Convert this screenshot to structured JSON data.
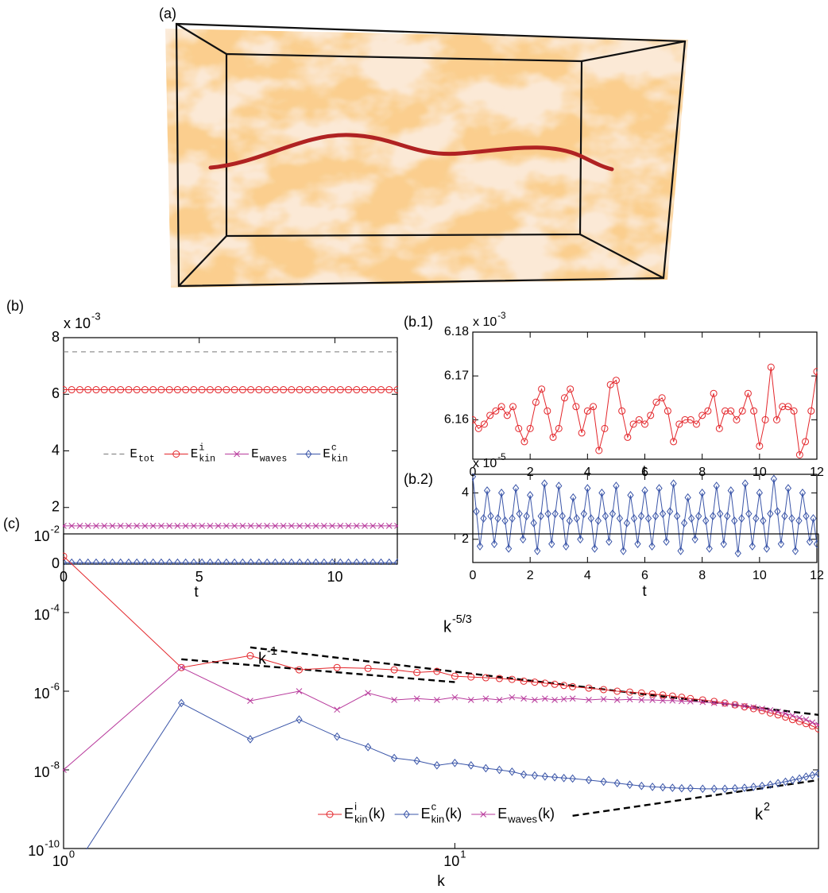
{
  "panel_a": {
    "label": "(a)"
  },
  "chart_data": [
    {
      "type": "line",
      "label": "(b)",
      "xlabel": "t",
      "multiplier": {
        "text": "x 10",
        "exp": "-3"
      },
      "xlim": [
        0,
        12.3
      ],
      "xticks": [
        0,
        5,
        10
      ],
      "ylim": [
        0,
        8
      ],
      "yticks": [
        0,
        2,
        4,
        6,
        8
      ],
      "legend": "center",
      "x": [
        0,
        0.3,
        0.6,
        0.9,
        1.2,
        1.5,
        1.8,
        2.1,
        2.4,
        2.7,
        3,
        3.3,
        3.6,
        3.9,
        4.2,
        4.5,
        4.8,
        5.1,
        5.4,
        5.7,
        6,
        6.3,
        6.6,
        6.9,
        7.2,
        7.5,
        7.8,
        8.1,
        8.4,
        8.7,
        9,
        9.3,
        9.6,
        9.9,
        10.2,
        10.5,
        10.8,
        11.1,
        11.4,
        11.7,
        12,
        12.3
      ],
      "series": [
        {
          "name": "E",
          "sub": "tot",
          "color": "#777777",
          "dash": true,
          "values": [
            7.5,
            7.5,
            7.5,
            7.5,
            7.5,
            7.5,
            7.5,
            7.5,
            7.5,
            7.5,
            7.5,
            7.5,
            7.5,
            7.5,
            7.5,
            7.5,
            7.5,
            7.5,
            7.5,
            7.5,
            7.5,
            7.5,
            7.5,
            7.5,
            7.5,
            7.5,
            7.5,
            7.5,
            7.5,
            7.5,
            7.5,
            7.5,
            7.5,
            7.5,
            7.5,
            7.5,
            7.5,
            7.5,
            7.5,
            7.5,
            7.5,
            7.5
          ]
        },
        {
          "name": "E",
          "sup": "i",
          "sub": "kin",
          "color": "#e3262b",
          "marker": "circle",
          "values": [
            6.16,
            6.16,
            6.16,
            6.16,
            6.16,
            6.16,
            6.16,
            6.16,
            6.16,
            6.16,
            6.16,
            6.16,
            6.16,
            6.16,
            6.16,
            6.16,
            6.16,
            6.16,
            6.16,
            6.16,
            6.16,
            6.16,
            6.16,
            6.16,
            6.16,
            6.16,
            6.16,
            6.16,
            6.16,
            6.16,
            6.16,
            6.16,
            6.16,
            6.16,
            6.16,
            6.16,
            6.16,
            6.16,
            6.16,
            6.16,
            6.16,
            6.16
          ]
        },
        {
          "name": "E",
          "sub": "waves",
          "color": "#b83a9c",
          "marker": "x",
          "values": [
            1.35,
            1.35,
            1.35,
            1.35,
            1.35,
            1.35,
            1.35,
            1.35,
            1.35,
            1.35,
            1.35,
            1.35,
            1.35,
            1.35,
            1.35,
            1.35,
            1.35,
            1.35,
            1.35,
            1.35,
            1.35,
            1.35,
            1.35,
            1.35,
            1.35,
            1.35,
            1.35,
            1.35,
            1.35,
            1.35,
            1.35,
            1.35,
            1.35,
            1.35,
            1.35,
            1.35,
            1.35,
            1.35,
            1.35,
            1.35,
            1.35,
            1.35
          ]
        },
        {
          "name": "E",
          "sup": "c",
          "sub": "kin",
          "color": "#3a55a8",
          "marker": "diamond",
          "values": [
            0.05,
            0.05,
            0.05,
            0.05,
            0.05,
            0.05,
            0.05,
            0.05,
            0.05,
            0.05,
            0.05,
            0.05,
            0.05,
            0.05,
            0.05,
            0.05,
            0.05,
            0.05,
            0.05,
            0.05,
            0.05,
            0.05,
            0.05,
            0.05,
            0.05,
            0.05,
            0.05,
            0.05,
            0.05,
            0.05,
            0.05,
            0.05,
            0.05,
            0.05,
            0.05,
            0.05,
            0.05,
            0.05,
            0.05,
            0.05,
            0.05,
            0.05
          ]
        }
      ]
    },
    {
      "type": "line",
      "label": "(b.1)",
      "xlabel": "t",
      "multiplier": {
        "text": "x 10",
        "exp": "-3"
      },
      "xlim": [
        0,
        12
      ],
      "xticks": [
        0,
        2,
        4,
        6,
        8,
        10,
        12
      ],
      "ylim": [
        6.151,
        6.18
      ],
      "yticks": [
        6.16,
        6.17,
        6.18
      ],
      "x": [
        0,
        0.2,
        0.4,
        0.6,
        0.8,
        1,
        1.2,
        1.4,
        1.6,
        1.8,
        2,
        2.2,
        2.4,
        2.6,
        2.8,
        3,
        3.2,
        3.4,
        3.6,
        3.8,
        4,
        4.2,
        4.4,
        4.6,
        4.8,
        5,
        5.2,
        5.4,
        5.6,
        5.8,
        6,
        6.2,
        6.4,
        6.6,
        6.8,
        7,
        7.2,
        7.4,
        7.6,
        7.8,
        8,
        8.2,
        8.4,
        8.6,
        8.8,
        9,
        9.2,
        9.4,
        9.6,
        9.8,
        10,
        10.2,
        10.4,
        10.6,
        10.8,
        11,
        11.2,
        11.4,
        11.6,
        11.8,
        12
      ],
      "series": [
        {
          "color": "#e3262b",
          "marker": "circle",
          "values": [
            6.16,
            6.158,
            6.159,
            6.161,
            6.162,
            6.163,
            6.161,
            6.163,
            6.158,
            6.155,
            6.158,
            6.164,
            6.167,
            6.162,
            6.156,
            6.158,
            6.165,
            6.167,
            6.163,
            6.157,
            6.162,
            6.163,
            6.153,
            6.158,
            6.168,
            6.169,
            6.162,
            6.156,
            6.159,
            6.16,
            6.159,
            6.161,
            6.164,
            6.165,
            6.162,
            6.155,
            6.159,
            6.16,
            6.16,
            6.159,
            6.161,
            6.162,
            6.166,
            6.158,
            6.162,
            6.162,
            6.16,
            6.162,
            6.166,
            6.162,
            6.154,
            6.16,
            6.172,
            6.16,
            6.163,
            6.163,
            6.162,
            6.152,
            6.155,
            6.162,
            6.171
          ]
        }
      ]
    },
    {
      "type": "line",
      "label": "(b.2)",
      "xlabel": "t",
      "multiplier": {
        "text": "x 10",
        "exp": "-5"
      },
      "xlim": [
        0,
        12
      ],
      "xticks": [
        0,
        2,
        4,
        6,
        8,
        10,
        12
      ],
      "ylim": [
        1,
        4.8
      ],
      "yticks": [
        2,
        4
      ],
      "x": [
        0,
        0.125,
        0.25,
        0.375,
        0.5,
        0.625,
        0.75,
        0.875,
        1,
        1.125,
        1.25,
        1.375,
        1.5,
        1.625,
        1.75,
        1.875,
        2,
        2.125,
        2.25,
        2.375,
        2.5,
        2.625,
        2.75,
        2.875,
        3,
        3.125,
        3.25,
        3.375,
        3.5,
        3.625,
        3.75,
        3.875,
        4,
        4.125,
        4.25,
        4.375,
        4.5,
        4.625,
        4.75,
        4.875,
        5,
        5.125,
        5.25,
        5.375,
        5.5,
        5.625,
        5.75,
        5.875,
        6,
        6.125,
        6.25,
        6.375,
        6.5,
        6.625,
        6.75,
        6.875,
        7,
        7.125,
        7.25,
        7.375,
        7.5,
        7.625,
        7.75,
        7.875,
        8,
        8.125,
        8.25,
        8.375,
        8.5,
        8.625,
        8.75,
        8.875,
        9,
        9.125,
        9.25,
        9.375,
        9.5,
        9.625,
        9.75,
        9.875,
        10,
        10.125,
        10.25,
        10.375,
        10.5,
        10.625,
        10.75,
        10.875,
        11,
        11.125,
        11.25,
        11.375,
        11.5,
        11.625,
        11.75,
        11.875,
        12
      ],
      "series": [
        {
          "color": "#3a55a8",
          "marker": "diamond",
          "values": [
            4.7,
            3.2,
            1.7,
            2.9,
            4.1,
            3.0,
            1.8,
            2.9,
            4.0,
            2.8,
            1.6,
            2.9,
            4.2,
            3.1,
            2.0,
            3.0,
            3.9,
            2.7,
            1.5,
            3.0,
            4.4,
            3.1,
            1.8,
            3.1,
            4.3,
            3.0,
            1.7,
            2.8,
            3.8,
            2.9,
            2.0,
            3.1,
            4.2,
            2.9,
            1.6,
            2.8,
            4.0,
            3.0,
            1.9,
            3.1,
            4.3,
            2.9,
            1.5,
            2.7,
            3.9,
            2.9,
            1.8,
            3.0,
            4.1,
            2.9,
            1.7,
            3.0,
            4.2,
            3.1,
            1.9,
            3.2,
            4.4,
            3.0,
            1.5,
            2.7,
            3.8,
            2.9,
            2.0,
            3.0,
            4.0,
            2.8,
            1.6,
            3.0,
            4.3,
            3.1,
            1.8,
            3.0,
            4.1,
            2.8,
            1.4,
            2.9,
            4.4,
            3.1,
            1.7,
            2.9,
            4.0,
            2.8,
            1.6,
            3.1,
            4.6,
            3.2,
            1.8,
            3.0,
            4.2,
            2.9,
            1.5,
            2.8,
            4.0,
            3.0,
            1.9,
            2.9,
            1.8
          ]
        }
      ]
    },
    {
      "type": "line",
      "label": "(c)",
      "xlabel": "k",
      "xscale": "log",
      "yscale": "log",
      "xlim": [
        1,
        85
      ],
      "xticks": [
        {
          "value": 1,
          "label": "10",
          "exp": "0"
        },
        {
          "value": 10,
          "label": "10",
          "exp": "1"
        }
      ],
      "ylim": [
        1e-10,
        0.01
      ],
      "yticks": [
        {
          "value": 1e-10,
          "label": "10",
          "exp": "-10"
        },
        {
          "value": 1e-08,
          "label": "10",
          "exp": "-8"
        },
        {
          "value": 1e-06,
          "label": "10",
          "exp": "-6"
        },
        {
          "value": 0.0001,
          "label": "10",
          "exp": "-4"
        },
        {
          "value": 0.01,
          "label": "10",
          "exp": "-2"
        }
      ],
      "legend": "lower center",
      "x": [
        1,
        2,
        3,
        4,
        5,
        6,
        7,
        8,
        9,
        10,
        11,
        12,
        13,
        14,
        15,
        16,
        17,
        18,
        19,
        20,
        22,
        24,
        26,
        28,
        30,
        32,
        34,
        36,
        38,
        40,
        43,
        46,
        49,
        52,
        55,
        58,
        61,
        64,
        67,
        70,
        73,
        76,
        79,
        82,
        85
      ],
      "series": [
        {
          "name": "E",
          "sup": "i",
          "sub": "kin",
          "suffix": "(k)",
          "color": "#e3262b",
          "marker": "circle",
          "values": [
            0.0027,
            4e-06,
            8e-06,
            3.5e-06,
            4e-06,
            3.8e-06,
            3.5e-06,
            3e-06,
            3.2e-06,
            2.4e-06,
            2.3e-06,
            2.2e-06,
            2.1e-06,
            2e-06,
            1.8e-06,
            1.7e-06,
            1.6e-06,
            1.5e-06,
            1.4e-06,
            1.3e-06,
            1.2e-06,
            1.1e-06,
            1e-06,
            9.5e-07,
            9e-07,
            8.5e-07,
            8e-07,
            7.5e-07,
            7e-07,
            6.5e-07,
            6e-07,
            5.5e-07,
            5e-07,
            4.5e-07,
            4e-07,
            3.6e-07,
            3.2e-07,
            2.8e-07,
            2.5e-07,
            2.2e-07,
            1.9e-07,
            1.7e-07,
            1.5e-07,
            1.3e-07,
            1.1e-07
          ]
        },
        {
          "name": "E",
          "sup": "c",
          "sub": "kin",
          "suffix": "(k)",
          "color": "#3a55a8",
          "marker": "diamond",
          "values": [
            1.2e-11,
            5e-07,
            6e-08,
            1.9e-07,
            7e-08,
            3.8e-08,
            2e-08,
            1.7e-08,
            1.3e-08,
            1.5e-08,
            1.3e-08,
            1.1e-08,
            1e-08,
            9e-09,
            7.6e-09,
            7.2e-09,
            6.8e-09,
            6.5e-09,
            6.2e-09,
            6e-09,
            5.5e-09,
            5e-09,
            4.6e-09,
            4.2e-09,
            3.9e-09,
            3.7e-09,
            3.6e-09,
            3.5e-09,
            3.4e-09,
            3.4e-09,
            3.3e-09,
            3.3e-09,
            3.3e-09,
            3.4e-09,
            3.5e-09,
            3.7e-09,
            3.9e-09,
            4.2e-09,
            4.6e-09,
            5e-09,
            5.5e-09,
            6e-09,
            6.7e-09,
            7.3e-09,
            8e-09
          ]
        },
        {
          "name": "E",
          "sub": "waves",
          "suffix": "(k)",
          "color": "#b83a9c",
          "marker": "x",
          "values": [
            1e-08,
            4e-06,
            5.7e-07,
            1e-06,
            3.4e-07,
            9e-07,
            6e-07,
            6.5e-07,
            6e-07,
            7e-07,
            6e-07,
            6.5e-07,
            6e-07,
            7e-07,
            6.5e-07,
            6e-07,
            6.5e-07,
            6e-07,
            6.3e-07,
            6.5e-07,
            6e-07,
            6.3e-07,
            6e-07,
            6.2e-07,
            6e-07,
            6e-07,
            5.8e-07,
            5.8e-07,
            5.6e-07,
            5.5e-07,
            5.3e-07,
            5e-07,
            4.8e-07,
            4.5e-07,
            4.2e-07,
            3.9e-07,
            3.6e-07,
            3.3e-07,
            3e-07,
            2.7e-07,
            2.4e-07,
            2.1e-07,
            1.9e-07,
            1.6e-07,
            1.4e-07
          ]
        }
      ],
      "guides": [
        {
          "label": "k",
          "exp": "-5/3",
          "x": [
            3,
            85
          ],
          "values": [
            1.3e-05,
            2.5e-07
          ]
        },
        {
          "label": "k",
          "exp": "-1",
          "x": [
            2,
            10
          ],
          "values": [
            6.5e-06,
            1.7e-06
          ]
        },
        {
          "label": "k",
          "exp": "2",
          "x": [
            20,
            85
          ],
          "values": [
            6.8e-10,
            5.5e-09
          ]
        }
      ]
    }
  ]
}
